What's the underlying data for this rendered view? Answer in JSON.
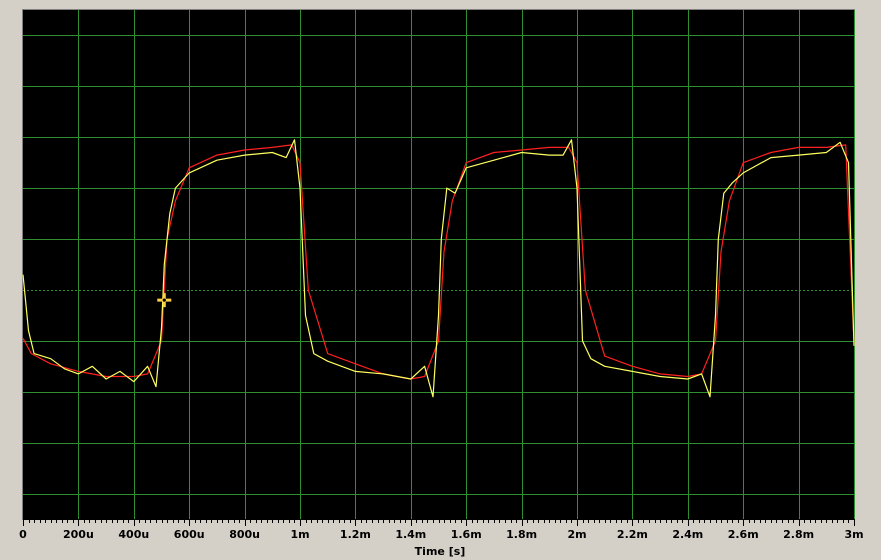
{
  "colors": {
    "plot_background": "#000000",
    "frame_background": "#d4d0c8",
    "grid": "#2f8f2f",
    "trace_red": "#ff2020",
    "trace_yellow": "#ffff60",
    "trace_green": "#60ff60",
    "cursor": "#ffd040"
  },
  "chart_data": {
    "type": "line",
    "xlabel": "Time [s]",
    "ylabel": "",
    "xlim": [
      0,
      0.003
    ],
    "ylim": [
      -1.1,
      0.9
    ],
    "grid": true,
    "x_tick_values": [
      0,
      0.0002,
      0.0004,
      0.0006,
      0.0008,
      0.001,
      0.0012,
      0.0014,
      0.0016,
      0.0018,
      0.002,
      0.0022,
      0.0024,
      0.0026,
      0.0028,
      0.003
    ],
    "x_tick_labels": [
      "0",
      "200u",
      "400u",
      "600u",
      "800u",
      "1m",
      "1.2m",
      "1.4m",
      "1.6m",
      "1.8m",
      "2m",
      "2.2m",
      "2.4m",
      "2.6m",
      "2.8m",
      "3m"
    ],
    "y_grid_values": [
      0.8,
      0.6,
      0.4,
      0.2,
      0.0,
      -0.2,
      -0.4,
      -0.6,
      -0.8,
      -1.0
    ],
    "y_reference": -0.2,
    "series": [
      {
        "color": "#ff2020",
        "x": [
          0,
          3e-05,
          0.0001,
          0.0002,
          0.0003,
          0.0004,
          0.00045,
          0.0005,
          0.00052,
          0.00055,
          0.0006,
          0.0007,
          0.0008,
          0.0009,
          0.00097,
          0.001,
          0.00103,
          0.0011,
          0.0012,
          0.0013,
          0.0014,
          0.00145,
          0.0015,
          0.00152,
          0.00155,
          0.0016,
          0.0017,
          0.0018,
          0.0019,
          0.00197,
          0.002,
          0.00203,
          0.0021,
          0.0022,
          0.0023,
          0.0024,
          0.00245,
          0.0025,
          0.00252,
          0.00255,
          0.0026,
          0.0027,
          0.0028,
          0.0029,
          0.00297,
          0.003
        ],
        "y": [
          -0.39,
          -0.45,
          -0.49,
          -0.52,
          -0.54,
          -0.54,
          -0.53,
          -0.4,
          0.0,
          0.15,
          0.28,
          0.33,
          0.35,
          0.36,
          0.37,
          0.3,
          -0.2,
          -0.45,
          -0.49,
          -0.53,
          -0.55,
          -0.54,
          -0.4,
          -0.05,
          0.15,
          0.3,
          0.34,
          0.35,
          0.36,
          0.36,
          0.3,
          -0.2,
          -0.46,
          -0.5,
          -0.53,
          -0.54,
          -0.53,
          -0.4,
          -0.05,
          0.15,
          0.3,
          0.34,
          0.36,
          0.36,
          0.37,
          -0.41
        ]
      },
      {
        "color": "#ffff60",
        "x": [
          0,
          2e-05,
          4e-05,
          0.0001,
          0.00015,
          0.0002,
          0.00025,
          0.0003,
          0.00035,
          0.0004,
          0.00045,
          0.00048,
          0.0005,
          0.00051,
          0.00053,
          0.00055,
          0.0006,
          0.0007,
          0.0008,
          0.0009,
          0.00095,
          0.00098,
          0.001,
          0.00102,
          0.00105,
          0.0011,
          0.0012,
          0.0013,
          0.0014,
          0.00145,
          0.00148,
          0.0015,
          0.00151,
          0.00153,
          0.00156,
          0.0016,
          0.0017,
          0.0018,
          0.0019,
          0.00195,
          0.00198,
          0.002,
          0.00202,
          0.00205,
          0.0021,
          0.0022,
          0.0023,
          0.0024,
          0.00245,
          0.00248,
          0.0025,
          0.00251,
          0.00253,
          0.00256,
          0.0026,
          0.0027,
          0.0028,
          0.0029,
          0.00295,
          0.00298,
          0.003
        ],
        "y": [
          -0.14,
          -0.36,
          -0.45,
          -0.47,
          -0.51,
          -0.53,
          -0.5,
          -0.55,
          -0.52,
          -0.56,
          -0.5,
          -0.58,
          -0.35,
          -0.1,
          0.1,
          0.2,
          0.26,
          0.31,
          0.33,
          0.34,
          0.32,
          0.39,
          0.2,
          -0.3,
          -0.45,
          -0.48,
          -0.52,
          -0.53,
          -0.55,
          -0.5,
          -0.62,
          -0.3,
          0.0,
          0.2,
          0.18,
          0.28,
          0.31,
          0.34,
          0.33,
          0.33,
          0.39,
          0.2,
          -0.4,
          -0.47,
          -0.5,
          -0.52,
          -0.54,
          -0.55,
          -0.53,
          -0.62,
          -0.3,
          0.0,
          0.18,
          0.22,
          0.26,
          0.32,
          0.33,
          0.34,
          0.38,
          0.3,
          -0.42
        ]
      }
    ],
    "cursor": {
      "x": 0.00051,
      "y": -0.24
    }
  }
}
